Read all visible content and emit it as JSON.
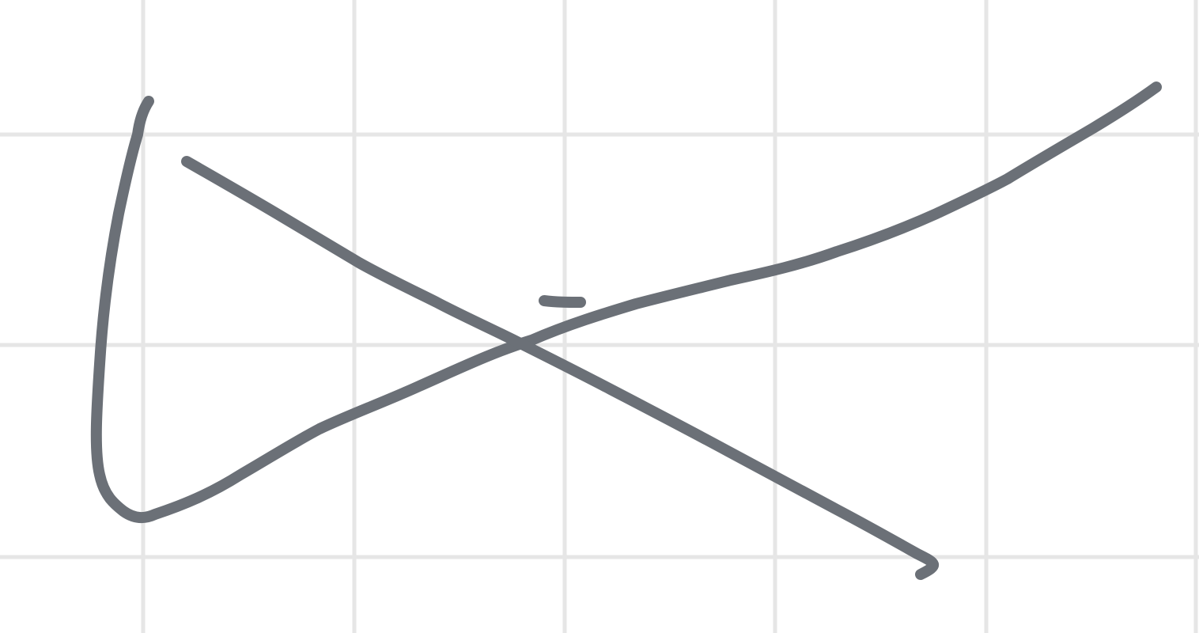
{
  "canvas": {
    "background_color": "#ffffff",
    "grid_color": "#e6e6e6",
    "ink_color": "#6b7077",
    "has_grid": true
  },
  "drawing": {
    "strokes": [
      {
        "name": "stroke-left-curve"
      },
      {
        "name": "stroke-diagonal-down"
      },
      {
        "name": "stroke-short-dash"
      }
    ]
  }
}
